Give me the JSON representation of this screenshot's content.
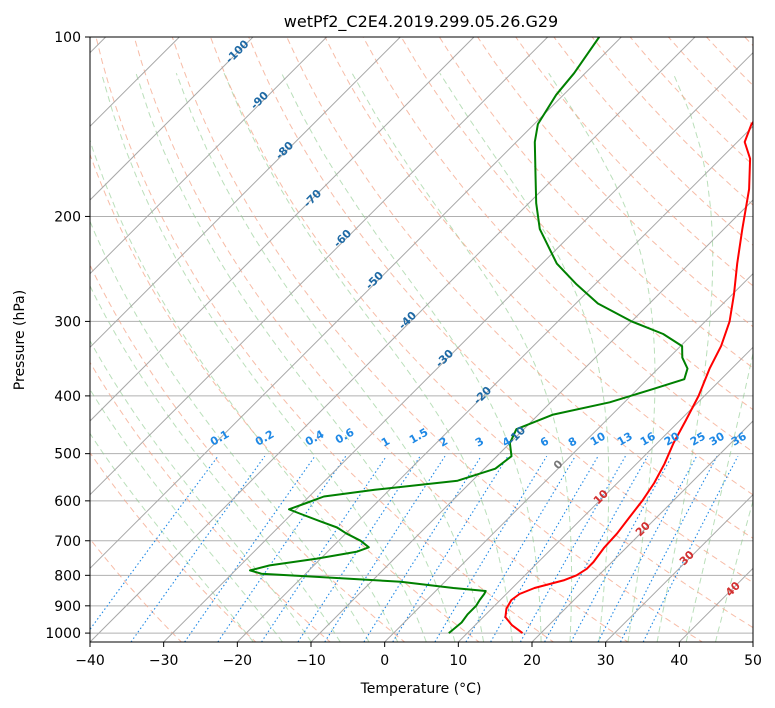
{
  "chart_data": {
    "type": "skew-t",
    "title": "wetPf2_C2E4.2019.299.05.26.G29",
    "xlabel": "Temperature (°C)",
    "ylabel": "Pressure (hPa)",
    "xlim": [
      -40,
      50
    ],
    "ylim": [
      1035,
      100
    ],
    "x_ticks": [
      -40,
      -30,
      -20,
      -10,
      0,
      10,
      20,
      30,
      40,
      50
    ],
    "y_ticks": [
      1000,
      900,
      800,
      700,
      600,
      500,
      400,
      300,
      200,
      100
    ],
    "mixing_ratio_labels": [
      "0.1",
      "0.2",
      "0.4",
      "0.6",
      "1",
      "1.5",
      "2",
      "3",
      "4",
      "6",
      "8",
      "10",
      "13",
      "16",
      "20",
      "25",
      "30",
      "36"
    ],
    "mixing_ratio_values": [
      0.1,
      0.2,
      0.4,
      0.6,
      1,
      1.5,
      2,
      3,
      4,
      6,
      8,
      10,
      13,
      16,
      20,
      25,
      30,
      36
    ],
    "dry_adiabat_labels": [
      "-100",
      "-90",
      "-80",
      "-70",
      "-60",
      "-50",
      "-40",
      "-30",
      "-20",
      "-10"
    ],
    "dry_adiabat_values": [
      -100,
      -90,
      -80,
      -70,
      -60,
      -50,
      -40,
      -30,
      -20,
      -10
    ],
    "moist_adiabat_labels": [
      "0",
      "10",
      "20",
      "30",
      "40"
    ],
    "moist_adiabat_values": [
      0,
      10,
      20,
      30,
      40
    ],
    "series": [
      {
        "name": "Temperature",
        "color": "#ff0000",
        "points": [
          [
            1000,
            17.5
          ],
          [
            970,
            15.0
          ],
          [
            940,
            13.0
          ],
          [
            910,
            12.0
          ],
          [
            880,
            11.5
          ],
          [
            860,
            11.8
          ],
          [
            840,
            13.0
          ],
          [
            815,
            16.0
          ],
          [
            800,
            17.0
          ],
          [
            780,
            17.5
          ],
          [
            760,
            17.5
          ],
          [
            720,
            17.0
          ],
          [
            680,
            16.8
          ],
          [
            640,
            16.3
          ],
          [
            600,
            15.8
          ],
          [
            560,
            15.0
          ],
          [
            520,
            13.8
          ],
          [
            480,
            12.2
          ],
          [
            440,
            10.8
          ],
          [
            400,
            9.2
          ],
          [
            360,
            7.0
          ],
          [
            330,
            5.5
          ],
          [
            300,
            3.3
          ],
          [
            270,
            0.2
          ],
          [
            240,
            -3.5
          ],
          [
            210,
            -7.5
          ],
          [
            180,
            -12.0
          ],
          [
            160,
            -16.0
          ],
          [
            150,
            -19.0
          ],
          [
            140,
            -20.5
          ],
          [
            130,
            -21.0
          ],
          [
            120,
            -21.3
          ],
          [
            110,
            -22.2
          ],
          [
            100,
            -24.0
          ]
        ]
      },
      {
        "name": "Dewpoint",
        "color": "#008000",
        "points": [
          [
            1000,
            7.5
          ],
          [
            960,
            7.8
          ],
          [
            930,
            7.5
          ],
          [
            900,
            7.5
          ],
          [
            880,
            7.2
          ],
          [
            860,
            7.0
          ],
          [
            850,
            6.8
          ],
          [
            840,
            2.0
          ],
          [
            820,
            -6.0
          ],
          [
            805,
            -18.0
          ],
          [
            795,
            -26.0
          ],
          [
            785,
            -28.0
          ],
          [
            770,
            -26.0
          ],
          [
            750,
            -20.5
          ],
          [
            730,
            -16.0
          ],
          [
            718,
            -15.0
          ],
          [
            700,
            -17.0
          ],
          [
            680,
            -20.0
          ],
          [
            665,
            -22.0
          ],
          [
            650,
            -25.0
          ],
          [
            630,
            -29.0
          ],
          [
            620,
            -31.0
          ],
          [
            605,
            -29.5
          ],
          [
            590,
            -28.0
          ],
          [
            575,
            -22.0
          ],
          [
            555,
            -12.0
          ],
          [
            530,
            -8.5
          ],
          [
            505,
            -8.0
          ],
          [
            480,
            -10.0
          ],
          [
            455,
            -11.0
          ],
          [
            430,
            -8.0
          ],
          [
            410,
            -2.0
          ],
          [
            390,
            2.0
          ],
          [
            375,
            5.0
          ],
          [
            360,
            4.0
          ],
          [
            345,
            1.8
          ],
          [
            330,
            0.2
          ],
          [
            315,
            -4.0
          ],
          [
            300,
            -10.0
          ],
          [
            280,
            -17.0
          ],
          [
            260,
            -22.5
          ],
          [
            240,
            -28.0
          ],
          [
            210,
            -35.0
          ],
          [
            190,
            -39.0
          ],
          [
            170,
            -43.0
          ],
          [
            150,
            -47.5
          ],
          [
            140,
            -49.5
          ],
          [
            125,
            -51.0
          ],
          [
            115,
            -51.5
          ],
          [
            100,
            -53.0
          ]
        ]
      }
    ]
  }
}
